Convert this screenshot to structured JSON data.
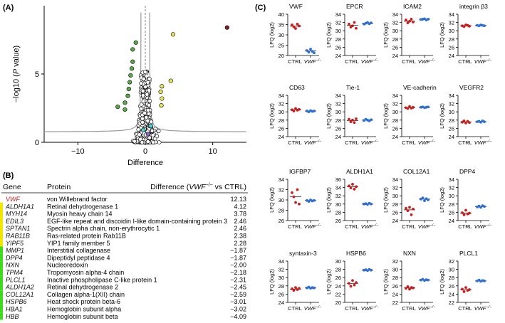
{
  "panel_labels": {
    "A": "(A)",
    "B": "(B)",
    "C": "(C)"
  },
  "colors": {
    "red": "#c81e1e",
    "dark_red": "#8b1a1a",
    "blue": "#2f6fd6",
    "green_point": "#5aa84a",
    "yellow_point": "#e6e65a",
    "cyan": "#4fd6d6",
    "purple": "#8a6ad0",
    "curve": "#9a9a9a",
    "bar_yellow": "#f2e600",
    "bar_green": "#3ddc1a"
  },
  "chart_data": [
    {
      "id": "volcano",
      "type": "scatter",
      "title": "",
      "xlabel": "Difference",
      "ylabel_parts": [
        "−log10 (",
        "P",
        " value)"
      ],
      "xlim": [
        -15,
        15
      ],
      "ylim": [
        0,
        10
      ],
      "xticks": [
        -10,
        0,
        10
      ],
      "yticks": [
        0,
        5
      ],
      "xtick_labels": [
        "−10",
        "0",
        "10"
      ],
      "ytick_labels": [
        "0",
        "5"
      ],
      "highlighted_points": [
        {
          "x": 12.13,
          "y": 8.4,
          "group": "VWF"
        },
        {
          "x": 4.12,
          "y": 7.9,
          "group": "up"
        },
        {
          "x": 3.78,
          "y": 4.5,
          "group": "up"
        },
        {
          "x": 2.46,
          "y": 4.1,
          "group": "up"
        },
        {
          "x": 2.46,
          "y": 3.2,
          "group": "up"
        },
        {
          "x": 2.38,
          "y": 2.7,
          "group": "up"
        },
        {
          "x": 2.28,
          "y": 3.7,
          "group": "up"
        },
        {
          "x": -1.87,
          "y": 6.8,
          "group": "down"
        },
        {
          "x": -1.87,
          "y": 5.9,
          "group": "down"
        },
        {
          "x": -2.0,
          "y": 5.4,
          "group": "down"
        },
        {
          "x": -2.18,
          "y": 4.9,
          "group": "down"
        },
        {
          "x": -2.31,
          "y": 4.4,
          "group": "down"
        },
        {
          "x": -2.45,
          "y": 3.9,
          "group": "down"
        },
        {
          "x": -2.59,
          "y": 3.4,
          "group": "down"
        },
        {
          "x": -3.01,
          "y": 2.9,
          "group": "down"
        },
        {
          "x": -3.02,
          "y": 2.4,
          "group": "down"
        },
        {
          "x": -4.09,
          "y": 2.6,
          "group": "down"
        },
        {
          "x": -1.4,
          "y": 7.3,
          "group": "down"
        },
        {
          "x": 0.8,
          "y": 1.2,
          "group": "cyan"
        },
        {
          "x": -0.3,
          "y": 0.9,
          "group": "cyan"
        },
        {
          "x": 0.4,
          "y": 0.6,
          "group": "purple"
        }
      ]
    },
    {
      "id": "lfq",
      "type": "scatter",
      "ylabel": "LFQ (log2)",
      "x_categories": [
        "CTRL",
        "VWF"
      ],
      "x_superscript": "−/−",
      "panels": [
        {
          "title": "VWF",
          "ylim": [
            20,
            40
          ],
          "yticks": [
            20,
            25,
            30,
            35,
            40
          ],
          "ctrl": [
            34.8,
            33.9,
            33.1,
            35.2,
            34.3
          ],
          "ctrl_mean": 34.2,
          "vwf": [
            22.4,
            21.6,
            23.1,
            22.0,
            21.3
          ],
          "vwf_mean": 22.2
        },
        {
          "title": "EPCR",
          "ylim": [
            24,
            34
          ],
          "yticks": [
            24,
            26,
            28,
            30,
            32,
            34
          ],
          "ctrl": [
            31.6,
            30.9,
            31.2,
            32.0,
            30.6
          ],
          "ctrl_mean": 31.3,
          "vwf": [
            31.6,
            31.8,
            32.0,
            31.7,
            31.9
          ],
          "vwf_mean": 31.8
        },
        {
          "title": "ICAM2",
          "ylim": [
            24,
            34
          ],
          "yticks": [
            24,
            26,
            28,
            30,
            32,
            34
          ],
          "ctrl": [
            32.6,
            31.9,
            32.3,
            32.8,
            32.1
          ],
          "ctrl_mean": 32.3,
          "vwf": [
            32.7,
            32.8,
            32.9,
            32.6,
            32.8
          ],
          "vwf_mean": 32.8
        },
        {
          "title": "integrin β3",
          "ylim": [
            24,
            34
          ],
          "yticks": [
            24,
            26,
            28,
            30,
            32,
            34
          ],
          "ctrl": [
            31.2,
            31.0,
            31.4,
            31.3,
            31.1
          ],
          "ctrl_mean": 31.2,
          "vwf": [
            31.3,
            31.2,
            31.4,
            31.3,
            31.2
          ],
          "vwf_mean": 31.3
        },
        {
          "title": "CD63",
          "ylim": [
            24,
            34
          ],
          "yticks": [
            24,
            26,
            28,
            30,
            32,
            34
          ],
          "ctrl": [
            30.5,
            30.2,
            30.8,
            30.4,
            30.6
          ],
          "ctrl_mean": 30.5,
          "vwf": [
            30.2,
            30.0,
            30.3,
            30.1,
            30.2
          ],
          "vwf_mean": 30.2
        },
        {
          "title": "Tie-1",
          "ylim": [
            24,
            34
          ],
          "yticks": [
            24,
            26,
            28,
            30,
            32,
            34
          ],
          "ctrl": [
            28.2,
            27.6,
            28.0,
            27.4,
            28.3
          ],
          "ctrl_mean": 27.9,
          "vwf": [
            27.9,
            28.2,
            28.0,
            27.8,
            28.1
          ],
          "vwf_mean": 28.0
        },
        {
          "title": "VE-cadherin",
          "ylim": [
            24,
            34
          ],
          "yticks": [
            24,
            26,
            28,
            30,
            32,
            34
          ],
          "ctrl": [
            31.0,
            30.8,
            31.3,
            30.9,
            31.1
          ],
          "ctrl_mean": 31.0,
          "vwf": [
            31.1,
            31.2,
            31.0,
            31.1,
            31.2
          ],
          "vwf_mean": 31.1
        },
        {
          "title": "VEGFR2",
          "ylim": [
            24,
            34
          ],
          "yticks": [
            24,
            26,
            28,
            30,
            32,
            34
          ],
          "ctrl": [
            27.5,
            27.8,
            27.3,
            27.7,
            27.4
          ],
          "ctrl_mean": 27.5,
          "vwf": [
            27.6,
            27.7,
            27.5,
            27.8,
            27.6
          ],
          "vwf_mean": 27.6
        },
        {
          "title": "IGFBP7",
          "ylim": [
            26,
            34
          ],
          "yticks": [
            26,
            28,
            30,
            32,
            34
          ],
          "ctrl": [
            31.4,
            30.6,
            29.5,
            32.0,
            29.2
          ],
          "ctrl_mean": 30.6,
          "vwf": [
            29.9,
            29.7,
            30.0,
            29.8,
            29.9
          ],
          "vwf_mean": 29.9
        },
        {
          "title": "ALDH1A1",
          "ylim": [
            26,
            36
          ],
          "yticks": [
            26,
            28,
            30,
            32,
            34,
            36
          ],
          "ctrl": [
            34.4,
            33.9,
            34.8,
            33.6,
            34.2
          ],
          "ctrl_mean": 34.2,
          "vwf": [
            30.0,
            30.1,
            29.9,
            30.2,
            30.0
          ],
          "vwf_mean": 30.0
        },
        {
          "title": "COL12A1",
          "ylim": [
            24,
            34
          ],
          "yticks": [
            24,
            26,
            28,
            30,
            32,
            34
          ],
          "ctrl": [
            27.0,
            26.4,
            27.2,
            25.4,
            26.8
          ],
          "ctrl_mean": 26.6,
          "vwf": [
            29.2,
            29.5,
            28.8,
            29.3,
            29.0
          ],
          "vwf_mean": 29.2
        },
        {
          "title": "DPP4",
          "ylim": [
            24,
            34
          ],
          "yticks": [
            24,
            26,
            28,
            30,
            32,
            34
          ],
          "ctrl": [
            25.9,
            25.4,
            26.5,
            25.6,
            25.8
          ],
          "ctrl_mean": 25.8,
          "vwf": [
            27.3,
            27.5,
            27.2,
            27.6,
            27.4
          ],
          "vwf_mean": 27.4
        },
        {
          "title": "syntaxin-3",
          "ylim": [
            24,
            34
          ],
          "yticks": [
            24,
            26,
            28,
            30,
            32,
            34
          ],
          "ctrl": [
            27.3,
            26.9,
            27.6,
            27.1,
            27.4
          ],
          "ctrl_mean": 27.2,
          "vwf": [
            27.5,
            27.7,
            27.4,
            27.6,
            27.5
          ],
          "vwf_mean": 27.5
        },
        {
          "title": "HSPB6",
          "ylim": [
            20,
            30
          ],
          "yticks": [
            20,
            22,
            24,
            26,
            28,
            30
          ],
          "ctrl": [
            24.6,
            23.9,
            25.3,
            24.2,
            24.8
          ],
          "ctrl_mean": 24.6,
          "vwf": [
            27.8,
            27.9,
            27.7,
            28.0,
            27.8
          ],
          "vwf_mean": 27.8
        },
        {
          "title": "NXN",
          "ylim": [
            22,
            32
          ],
          "yticks": [
            22,
            24,
            26,
            28,
            30,
            32
          ],
          "ctrl": [
            25.4,
            25.8,
            25.2,
            25.6,
            25.5
          ],
          "ctrl_mean": 25.5,
          "vwf": [
            27.4,
            27.6,
            27.3,
            27.5,
            27.4
          ],
          "vwf_mean": 27.4
        },
        {
          "title": "PLCL1",
          "ylim": [
            22,
            32
          ],
          "yticks": [
            22,
            24,
            26,
            28,
            30,
            32
          ],
          "ctrl": [
            25.2,
            24.6,
            25.6,
            24.9,
            25.1
          ],
          "ctrl_mean": 25.1,
          "vwf": [
            27.2,
            27.4,
            27.1,
            27.3,
            27.2
          ],
          "vwf_mean": 27.2
        }
      ]
    }
  ],
  "table": {
    "headers": {
      "gene": "Gene",
      "protein": "Protein",
      "difference": "Difference (",
      "difference_gene": "VWF",
      "difference_sup": "−/−",
      "difference_tail": " vs CTRL)"
    },
    "rows": [
      {
        "gene": "VWF",
        "protein": "von Willebrand factor",
        "value": "12.13",
        "bar": "none"
      },
      {
        "gene": "ALDH1A1",
        "protein": "Retinal dehydrogenase 1",
        "value": "4.12",
        "bar": "yellow"
      },
      {
        "gene": "MYH14",
        "protein": "Myosin heavy chain 14",
        "value": "3.78",
        "bar": "yellow"
      },
      {
        "gene": "EDIL3",
        "protein": "EGF-like repeat and discoidin I-like domain-containing protein 3",
        "value": "2.46",
        "bar": "yellow"
      },
      {
        "gene": "SPTAN1",
        "protein": "Spectrin alpha chain, non-erythrocytic 1",
        "value": "2.46",
        "bar": "yellow"
      },
      {
        "gene": "RAB11B",
        "protein": "Ras-related protein Rab11B",
        "value": "2.38",
        "bar": "yellow"
      },
      {
        "gene": "YIPF5",
        "protein": "YIP1 family member 5",
        "value": "2.28",
        "bar": "yellow"
      },
      {
        "gene": "MMP1",
        "protein": "Interstitial collagenase",
        "value": "−1.87",
        "bar": "green"
      },
      {
        "gene": "DPP4",
        "protein": "Dipeptidyl peptidase 4",
        "value": "−1.87",
        "bar": "green"
      },
      {
        "gene": "NXN",
        "protein": "Nucleoredoxin",
        "value": "−2.00",
        "bar": "green"
      },
      {
        "gene": "TPM4",
        "protein": "Tropomyosin alpha-4 chain",
        "value": "−2.18",
        "bar": "green"
      },
      {
        "gene": "PLCL1",
        "protein": "Inactive phospholipase C-like protein 1",
        "value": "−2.31",
        "bar": "green"
      },
      {
        "gene": "ALDH1A2",
        "protein": "Retinal dehydrogenase 2",
        "value": "−2.45",
        "bar": "green"
      },
      {
        "gene": "COL12A1",
        "protein": "Collagen alpha-1(XII) chain",
        "value": "−2.59",
        "bar": "green"
      },
      {
        "gene": "HSPB6",
        "protein": "Heat shock protein beta-6",
        "value": "−3.01",
        "bar": "green"
      },
      {
        "gene": "HBA1",
        "protein": "Hemoglobin subunit alpha",
        "value": "−3.02",
        "bar": "green"
      },
      {
        "gene": "HBB",
        "protein": "Hemoglobin subunit beta",
        "value": "−4.09",
        "bar": "green"
      }
    ]
  }
}
